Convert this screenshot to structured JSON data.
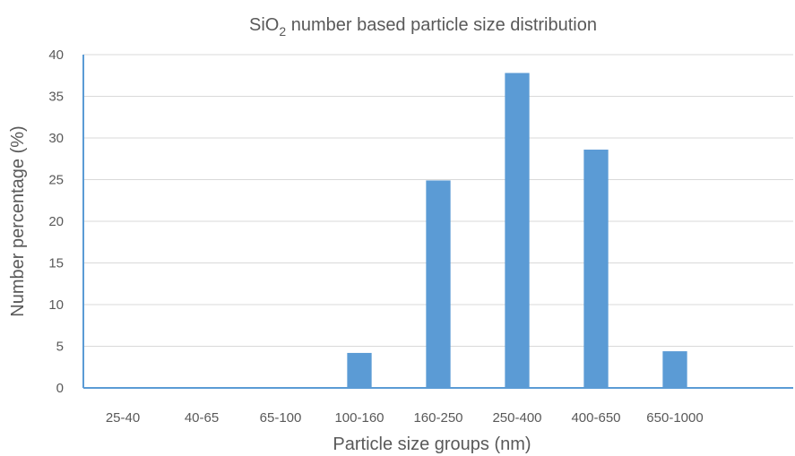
{
  "chart_data": {
    "type": "bar",
    "title_main": "SiO",
    "title_sub": "2",
    "title_rest": " number based particle size distribution",
    "xlabel": "Particle size groups (nm)",
    "ylabel": "Number percentage (%)",
    "categories": [
      "25-40",
      "40-65",
      "65-100",
      "100-160",
      "160-250",
      "250-400",
      "400-650",
      "650-1000",
      ""
    ],
    "values": [
      0,
      0,
      0,
      4.2,
      24.9,
      37.8,
      28.6,
      4.4,
      0
    ],
    "ylim": [
      0,
      40
    ],
    "yticks": [
      0,
      5,
      10,
      15,
      20,
      25,
      30,
      35,
      40
    ],
    "grid": true,
    "legend": "none",
    "bar_color": "#5b9bd5"
  }
}
